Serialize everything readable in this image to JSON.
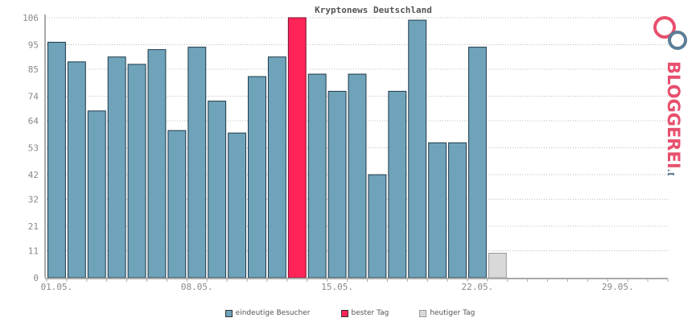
{
  "chart_data": {
    "type": "bar",
    "title": "Kryptonews Deutschland",
    "yticks": [
      "0",
      "11",
      "21",
      "32",
      "42",
      "53",
      "64",
      "74",
      "85",
      "95",
      "106"
    ],
    "ylim": [
      0,
      106
    ],
    "xticks": [
      {
        "index": 0,
        "label": "01.05."
      },
      {
        "index": 7,
        "label": "08.05."
      },
      {
        "index": 14,
        "label": "15.05."
      },
      {
        "index": 21,
        "label": "22.05."
      },
      {
        "index": 28,
        "label": "29.05."
      }
    ],
    "num_slots": 31,
    "values": [
      96,
      88,
      68,
      90,
      87,
      93,
      60,
      94,
      72,
      59,
      82,
      90,
      106,
      83,
      76,
      83,
      42,
      76,
      105,
      55,
      55,
      94,
      10
    ],
    "best_index": 12,
    "today_index": 22,
    "colors": {
      "visitors": "#6fa3ba",
      "best": "#ff2457",
      "today": "#d9d9d9",
      "border": "#1f3a4a"
    },
    "grid": true
  },
  "legend": {
    "visitors": "eindeutige Besucher",
    "best": "bester Tag",
    "today": "heutiger Tag"
  },
  "logo": {
    "text_main": "BLOGGEREI",
    "text_suffix": ".DE"
  }
}
